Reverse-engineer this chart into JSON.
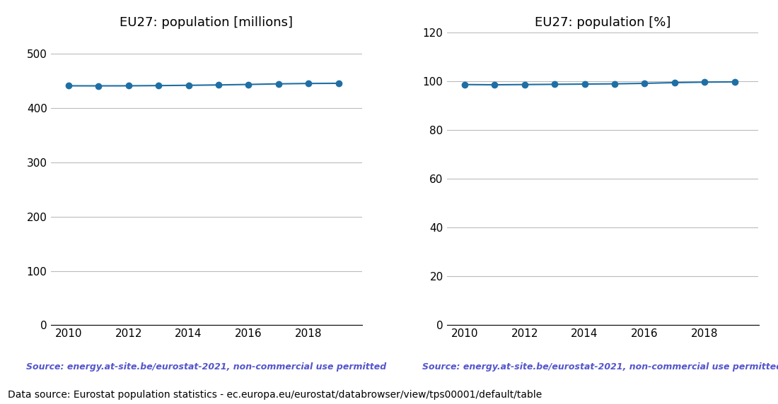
{
  "years": [
    2010,
    2011,
    2012,
    2013,
    2014,
    2015,
    2016,
    2017,
    2018,
    2019
  ],
  "population_millions": [
    441.4,
    441.3,
    441.4,
    441.8,
    442.3,
    443.0,
    443.9,
    445.0,
    445.7,
    446.0
  ],
  "population_pct": [
    98.6,
    98.5,
    98.6,
    98.7,
    98.8,
    98.9,
    99.1,
    99.4,
    99.6,
    99.7
  ],
  "title_millions": "EU27: population [millions]",
  "title_pct": "EU27: population [%]",
  "ylim_millions": [
    0,
    540
  ],
  "ylim_pct": [
    0,
    120
  ],
  "yticks_millions": [
    0,
    100,
    200,
    300,
    400,
    500
  ],
  "yticks_pct": [
    0,
    20,
    40,
    60,
    80,
    100,
    120
  ],
  "xticks": [
    2010,
    2012,
    2014,
    2016,
    2018
  ],
  "line_color": "#1f6fa5",
  "marker": "o",
  "marker_size": 6,
  "source_text": "Source: energy.at-site.be/eurostat-2021, non-commercial use permitted",
  "source_color": "#5555cc",
  "footer_text": "Data source: Eurostat population statistics - ec.europa.eu/eurostat/databrowser/view/tps00001/default/table",
  "footer_color": "#000000",
  "grid_color": "#bbbbbb",
  "title_fontsize": 13,
  "tick_fontsize": 11,
  "source_fontsize": 9,
  "footer_fontsize": 10
}
